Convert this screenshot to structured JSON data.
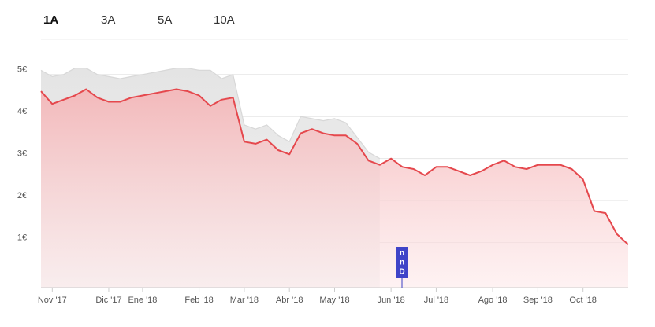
{
  "tabs": [
    "1A",
    "3A",
    "5A",
    "10A"
  ],
  "chart_data": {
    "type": "area",
    "categories": [
      null,
      "Nov '17",
      null,
      null,
      null,
      null,
      "Dic '17",
      null,
      null,
      "Ene '18",
      null,
      null,
      null,
      null,
      "Feb '18",
      null,
      null,
      null,
      "Mar '18",
      null,
      null,
      null,
      "Abr '18",
      null,
      null,
      null,
      "May '18",
      null,
      null,
      null,
      null,
      "Jun '18",
      null,
      null,
      null,
      "Jul '18",
      null,
      null,
      null,
      null,
      "Ago '18",
      null,
      null,
      null,
      "Sep '18",
      null,
      null,
      null,
      "Oct '18",
      null,
      null,
      null,
      null
    ],
    "series": [
      {
        "color": "#d8d8d8",
        "values": [
          5.1,
          4.95,
          5.0,
          5.15,
          5.15,
          5.0,
          4.95,
          4.9,
          4.95,
          5.0,
          5.05,
          5.1,
          5.15,
          5.15,
          5.1,
          5.1,
          4.9,
          5.0,
          3.8,
          3.7,
          3.8,
          3.55,
          3.4,
          4.0,
          3.95,
          3.9,
          3.95,
          3.85,
          3.5,
          3.15,
          3.0,
          null,
          null,
          null,
          null,
          null,
          null,
          null,
          null,
          null,
          null,
          null,
          null,
          null,
          null,
          null,
          null,
          null,
          null,
          null,
          null,
          null,
          null
        ]
      },
      {
        "color": "#e5484d",
        "values": [
          4.6,
          4.3,
          4.4,
          4.5,
          4.65,
          4.45,
          4.35,
          4.35,
          4.45,
          4.5,
          4.55,
          4.6,
          4.65,
          4.6,
          4.5,
          4.25,
          4.4,
          4.45,
          3.4,
          3.35,
          3.45,
          3.2,
          3.1,
          3.6,
          3.7,
          3.6,
          3.55,
          3.55,
          3.35,
          2.95,
          2.85,
          3.0,
          2.8,
          2.75,
          2.6,
          2.8,
          2.8,
          2.7,
          2.6,
          2.7,
          2.85,
          2.95,
          2.8,
          2.75,
          2.85,
          2.85,
          2.85,
          2.75,
          2.5,
          1.75,
          1.7,
          1.2,
          0.95
        ]
      }
    ],
    "ylim": [
      0,
      5.8
    ],
    "yticks": [
      {
        "value": 1,
        "label": "1€"
      },
      {
        "value": 2,
        "label": "2€"
      },
      {
        "value": 3,
        "label": "3€"
      },
      {
        "value": 4,
        "label": "4€"
      },
      {
        "value": 5,
        "label": "5€"
      }
    ],
    "grid": true,
    "annotation_letters": [
      "n",
      "n",
      "D"
    ]
  }
}
